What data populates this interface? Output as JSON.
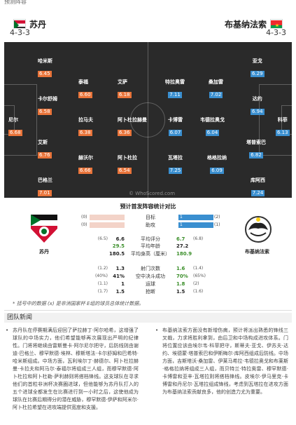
{
  "top_strip": "预测阵容",
  "home": {
    "name": "苏丹",
    "formation": "4-3-3",
    "emblem_label": "苏丹"
  },
  "away": {
    "name": "布基纳法索",
    "formation": "4-3-3",
    "emblem_label": "布基纳法索"
  },
  "pitch": {
    "watermark": "© WhoScored.com",
    "home_players": [
      {
        "name": "尼尔",
        "rating": "6.68"
      },
      {
        "name": "哈米斯",
        "rating": "6.45"
      },
      {
        "name": "卡尔舒姆",
        "rating": "6.58"
      },
      {
        "name": "艾斯",
        "rating": "6.76"
      },
      {
        "name": "巴格兰",
        "rating": "7.01"
      },
      {
        "name": "泰福",
        "rating": "6.60"
      },
      {
        "name": "拉马夫",
        "rating": "6.38"
      },
      {
        "name": "赫沃尔",
        "rating": "6.66"
      },
      {
        "name": "艾萨",
        "rating": "6.18"
      },
      {
        "name": "阿卜杜拉赫曼",
        "rating": "6.36"
      },
      {
        "name": "阿卜杜拉",
        "rating": "6.54"
      }
    ],
    "away_players": [
      {
        "name": "特拉奥雷",
        "rating": "7.11"
      },
      {
        "name": "卡博雷",
        "rating": "6.07"
      },
      {
        "name": "瓦塔拉",
        "rating": "7.25"
      },
      {
        "name": "桑加雷",
        "rating": "7.02"
      },
      {
        "name": "韦德拉奥戈",
        "rating": "6.04"
      },
      {
        "name": "格格拉纳",
        "rating": "6.09"
      },
      {
        "name": "亚戈",
        "rating": "6.29"
      },
      {
        "name": "达约",
        "rating": "6.94"
      },
      {
        "name": "塔普索巴",
        "rating": "6.82"
      },
      {
        "name": "库阿西",
        "rating": "7.24"
      },
      {
        "name": "科菲",
        "rating": "6.13"
      }
    ]
  },
  "stats": {
    "title": "预计首发阵容统计对比",
    "bars": [
      {
        "label": "目标",
        "home": "0",
        "away": "1",
        "home_sub": "(0)",
        "away_sub": "(2)",
        "home_frac": 0.0,
        "away_frac": 1.0
      },
      {
        "label": "助攻",
        "home": "0",
        "away": "1",
        "home_sub": "(0)",
        "away_sub": "(1)",
        "home_frac": 0.0,
        "away_frac": 1.0
      }
    ],
    "group1": [
      {
        "label": "平均评分",
        "home": "6.6",
        "away": "6.7",
        "home_sub": "(6.5)",
        "away_sub": "(6.8)"
      },
      {
        "label": "平均年龄",
        "home": "29.5",
        "away": "27.2",
        "home_sub": "",
        "away_sub": ""
      },
      {
        "label": "平均身高（厘米）",
        "home": "180.5",
        "away": "180.9",
        "home_sub": "",
        "away_sub": ""
      }
    ],
    "group2": [
      {
        "label": "射门次数",
        "home": "1.3",
        "away": "1.6",
        "home_sub": "(1.2)",
        "away_sub": "(1.4)"
      },
      {
        "label": "空中决斗成功",
        "home": "41%",
        "away": "70%",
        "home_sub": "(40%)",
        "away_sub": "(65%)"
      },
      {
        "label": "运球",
        "home": "1",
        "away": "1.8",
        "home_sub": "(1.1)",
        "away_sub": "(2)"
      },
      {
        "label": "抢断",
        "home": "1.5",
        "away": "1.5",
        "home_sub": "(1.7)",
        "away_sub": "(1.6)"
      }
    ]
  },
  "footnote": "* 括号中的数据 (x) 是非洲国家杯 E组的球员总体统计数据。",
  "news": {
    "title": "团队新闻",
    "left": "苏丹队在停赛期满后迎回了萨拉赫丁·阿尔哈希，这增强了球队的中场实力，他们希望能够再次展现出严明的纪律性。门将将继续由雷斯曼卡·阿尔尼尔把守，后防线则由谢迪·巴格兰、穆罕默德·埃林、穆斯塔法·卡尔舒姆和巴希特·哈米斯组成。中场方面，瓦利埃尔丁·赫德尔、阿卜杜拉赫曼·卡拉夫和阿马尔·泰福尔将组成三人组，而穆罕默德·阿卜杜拉和阿卜杜勒·萨利赫则将搭档锋线。这支球队在寻求他们的首粒非洲杯决赛圈进球，但他能够为苏丹队打入的五个进球全都发生在比赛进行到一小时之后，这使他成为球队在比赛后期得分的潜在威胁，穆罕默德·伊萨和阿米尔·阿卜杜拉希望在进攻端提供宽度和支援。",
    "right": "布基纳法索方面没有新增伤病，预计将派出熟悉的锋线三叉戟，力求将胜利拿到，由后卫和中场构成进攻体系。门将位置应该由埃尔韦·科菲把守，斯蒂夫·亚戈、伊苏夫·达约、埃德蒙·塔普索巴和伊斯梅尔·库阿西组成后防线。中场方面，吉斯塔沃·桑加雷、伊莱马希拉·韦德拉奥戈和布莱斯·格格拉纳将组成三人组，而贝特兰·特拉奥雷、穆罕默德·卡博雷和亚辛·瓦塔拉则将搭档锋线。皮埃尔·伊马里克·卡博雷和丹尼尔·瓦塔拉组成锋线，考虑到瓦塔拉在进攻方面为布基纳法索贡献良多，他的创造力尤为重要。"
  },
  "colors": {
    "home_rating": "#e9743a",
    "away_rating": "#3a8fd0",
    "pitch": "#2a2a2a"
  }
}
